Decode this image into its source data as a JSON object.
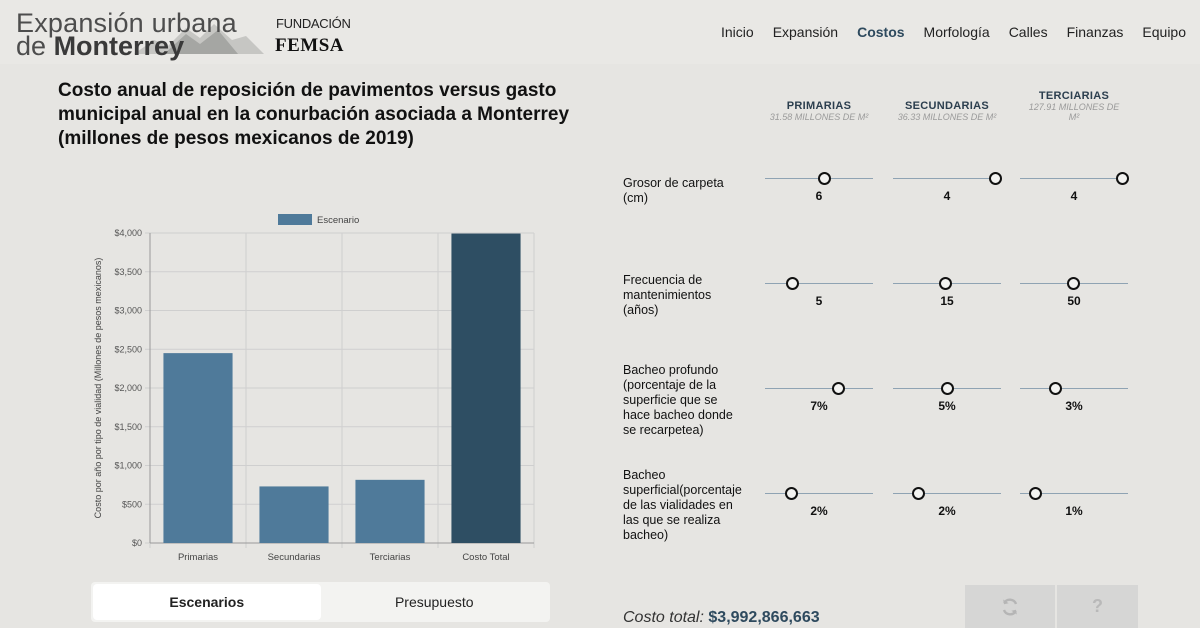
{
  "header": {
    "logo_line1": "Expansión urbana",
    "logo_line2_prefix": "de",
    "logo_line2_bold": "Monterrey",
    "partner_top": "FUNDACIÓN",
    "partner_main": "FEMSA",
    "nav": [
      "Inicio",
      "Expansión",
      "Costos",
      "Morfología",
      "Calles",
      "Finanzas",
      "Equipo"
    ],
    "active_nav": "Costos"
  },
  "title": "Costo anual de reposición de pavimentos versus gasto municipal anual en la conurbación asociada a Monterrey (millones de pesos mexicanos de 2019)",
  "chart_data": {
    "type": "bar",
    "categories": [
      "Primarias",
      "Secundarias",
      "Terciarias",
      "Costo Total"
    ],
    "series": [
      {
        "name": "Escenario",
        "values": [
          2450,
          730,
          815,
          3993
        ]
      }
    ],
    "bar_colors": [
      "#4f7a9a",
      "#4f7a9a",
      "#4f7a9a",
      "#2e4e63"
    ],
    "ylabel": "Costo por año por tipo de vialidad (Millones de pesos mexicanos)",
    "ylim": [
      0,
      4000
    ],
    "yticks": [
      0,
      500,
      1000,
      1500,
      2000,
      2500,
      3000,
      3500,
      4000
    ],
    "ytick_labels": [
      "$0",
      "$500",
      "$1,000",
      "$1,500",
      "$2,000",
      "$2,500",
      "$3,000",
      "$3,500",
      "$4,000"
    ],
    "legend_position": "top",
    "grid": true
  },
  "tabs": [
    {
      "label": "Escenarios",
      "selected": true
    },
    {
      "label": "Presupuesto",
      "selected": false
    }
  ],
  "columns": [
    {
      "name": "PRIMARIAS",
      "sub": "31.58 MILLONES DE M²"
    },
    {
      "name": "SECUNDARIAS",
      "sub": "36.33 MILLONES DE M²"
    },
    {
      "name": "TERCIARIAS",
      "sub": "127.91 MILLONES DE M²"
    }
  ],
  "rows": [
    {
      "label": "Grosor de carpeta (cm)",
      "values": [
        "6",
        "4",
        "4"
      ],
      "levels": [
        0.55,
        0.94,
        0.94
      ]
    },
    {
      "label": "Frecuencia de mantenimientos (años)",
      "values": [
        "5",
        "15",
        "50"
      ],
      "levels": [
        0.25,
        0.48,
        0.49
      ]
    },
    {
      "label": "Bacheo profundo (porcentaje de la superficie que se hace bacheo donde se recarpetea)",
      "values": [
        "7%",
        "5%",
        "3%"
      ],
      "levels": [
        0.68,
        0.5,
        0.32
      ]
    },
    {
      "label": "Bacheo superficial(porcentaje de las vialidades en las que se realiza bacheo)",
      "values": [
        "2%",
        "2%",
        "1%"
      ],
      "levels": [
        0.24,
        0.23,
        0.14
      ]
    }
  ],
  "footer": {
    "total_label": "Costo total:",
    "total_value": "$3,992,866,663",
    "refresh_icon": "refresh-icon",
    "help_label": "?"
  },
  "colors": {
    "background": "#e6e5e2",
    "accent": "#2e4a5e",
    "bar": "#4f7a9a",
    "bar_total": "#2e4e63"
  }
}
